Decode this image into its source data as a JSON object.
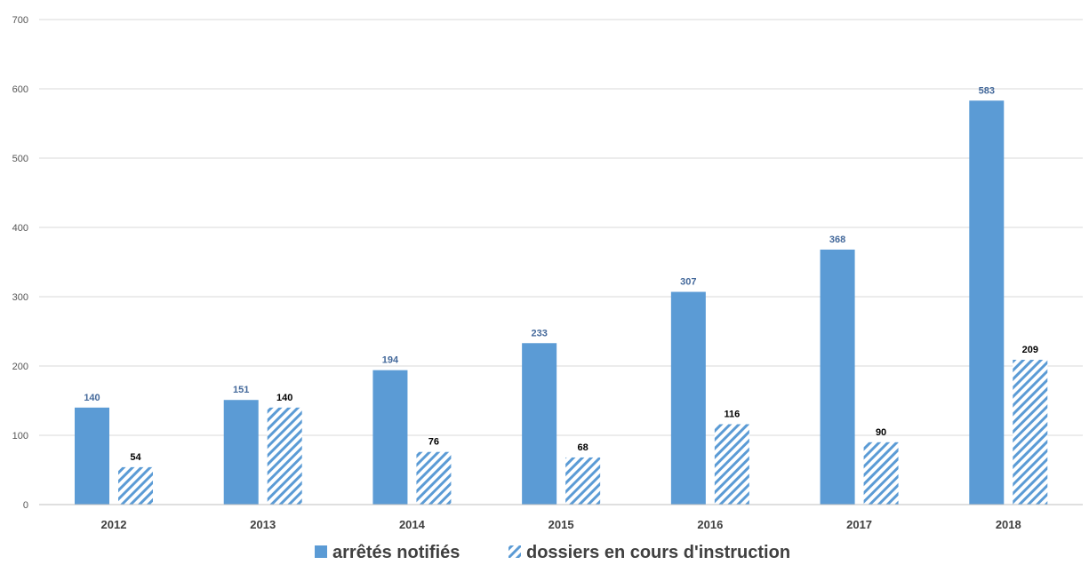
{
  "chart_data": {
    "type": "bar",
    "categories": [
      "2012",
      "2013",
      "2014",
      "2015",
      "2016",
      "2017",
      "2018"
    ],
    "series": [
      {
        "name": "arrêtés notifiés",
        "values": [
          140,
          151,
          194,
          233,
          307,
          368,
          583
        ],
        "color": "#5b9bd5",
        "pattern": "solid"
      },
      {
        "name": "dossiers en cours d'instruction",
        "values": [
          54,
          140,
          76,
          68,
          116,
          90,
          209
        ],
        "color": "#5b9bd5",
        "pattern": "hatched"
      }
    ],
    "title": "",
    "xlabel": "",
    "ylabel": "",
    "ylim": [
      0,
      700
    ],
    "yticks": [
      0,
      100,
      200,
      300,
      400,
      500,
      600,
      700
    ],
    "grid": true,
    "legend": "bottom-center",
    "colors": {
      "grid": "#d9d9d9",
      "axis": "#bfbfbf",
      "label_primary": "#44699b",
      "label_secondary": "#000000"
    }
  }
}
